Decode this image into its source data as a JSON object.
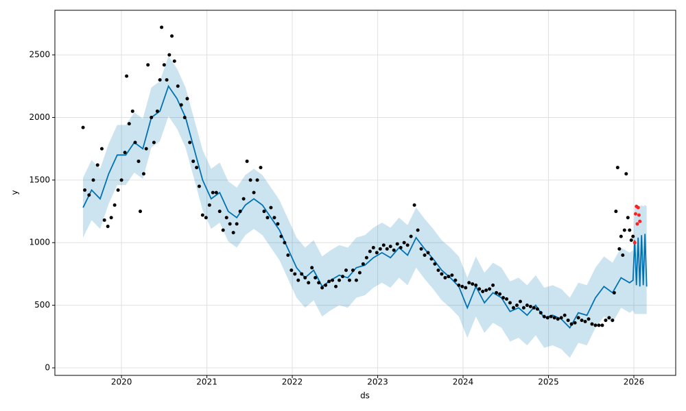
{
  "chart_data": {
    "type": "forecast",
    "xlabel": "ds",
    "ylabel": "y",
    "xlim": [
      2019.22,
      2026.49
    ],
    "ylim": [
      -60,
      2856
    ],
    "xticks": [
      2020,
      2021,
      2022,
      2023,
      2024,
      2025,
      2026
    ],
    "yticks": [
      0,
      500,
      1000,
      1500,
      2000,
      2500
    ],
    "grid": true,
    "observed": {
      "color": "#000000",
      "x": [
        2019.55,
        2019.57,
        2019.62,
        2019.67,
        2019.72,
        2019.77,
        2019.8,
        2019.84,
        2019.88,
        2019.92,
        2019.96,
        2020.0,
        2020.04,
        2020.06,
        2020.09,
        2020.13,
        2020.16,
        2020.2,
        2020.22,
        2020.26,
        2020.29,
        2020.31,
        2020.35,
        2020.38,
        2020.42,
        2020.45,
        2020.47,
        2020.5,
        2020.53,
        2020.56,
        2020.59,
        2020.62,
        2020.66,
        2020.7,
        2020.74,
        2020.77,
        2020.8,
        2020.84,
        2020.88,
        2020.91,
        2020.95,
        2020.99,
        2021.03,
        2021.07,
        2021.11,
        2021.15,
        2021.19,
        2021.23,
        2021.27,
        2021.31,
        2021.35,
        2021.39,
        2021.43,
        2021.47,
        2021.51,
        2021.55,
        2021.59,
        2021.63,
        2021.67,
        2021.71,
        2021.75,
        2021.79,
        2021.83,
        2021.87,
        2021.91,
        2021.95,
        2021.99,
        2022.03,
        2022.07,
        2022.11,
        2022.15,
        2022.19,
        2022.23,
        2022.27,
        2022.31,
        2022.35,
        2022.39,
        2022.43,
        2022.47,
        2022.51,
        2022.55,
        2022.59,
        2022.63,
        2022.67,
        2022.71,
        2022.75,
        2022.79,
        2022.83,
        2022.87,
        2022.91,
        2022.95,
        2022.99,
        2023.03,
        2023.07,
        2023.11,
        2023.15,
        2023.19,
        2023.23,
        2023.27,
        2023.31,
        2023.35,
        2023.39,
        2023.43,
        2023.47,
        2023.51,
        2023.55,
        2023.59,
        2023.63,
        2023.67,
        2023.71,
        2023.75,
        2023.79,
        2023.83,
        2023.87,
        2023.91,
        2023.95,
        2023.99,
        2024.03,
        2024.07,
        2024.11,
        2024.15,
        2024.19,
        2024.23,
        2024.27,
        2024.31,
        2024.35,
        2024.39,
        2024.43,
        2024.47,
        2024.51,
        2024.55,
        2024.59,
        2024.63,
        2024.67,
        2024.71,
        2024.75,
        2024.79,
        2024.83,
        2024.87,
        2024.91,
        2024.95,
        2024.99,
        2025.03,
        2025.07,
        2025.11,
        2025.15,
        2025.19,
        2025.23,
        2025.27,
        2025.31,
        2025.35,
        2025.39,
        2025.43,
        2025.47,
        2025.51,
        2025.55,
        2025.59,
        2025.63,
        2025.67,
        2025.71,
        2025.75,
        2025.77,
        2025.79,
        2025.81,
        2025.83,
        2025.85,
        2025.87,
        2025.89,
        2025.91,
        2025.93,
        2025.95,
        2025.97,
        2025.99
      ],
      "y": [
        1920,
        1420,
        1380,
        1500,
        1620,
        1750,
        1180,
        1130,
        1200,
        1300,
        1420,
        1500,
        1720,
        2330,
        1950,
        2050,
        1800,
        1650,
        1250,
        1550,
        1750,
        2420,
        2000,
        1800,
        2050,
        2300,
        2720,
        2420,
        2300,
        2500,
        2650,
        2450,
        2250,
        2100,
        2000,
        2150,
        1800,
        1650,
        1600,
        1450,
        1220,
        1200,
        1300,
        1400,
        1400,
        1250,
        1100,
        1200,
        1150,
        1080,
        1150,
        1250,
        1350,
        1650,
        1500,
        1400,
        1500,
        1600,
        1250,
        1200,
        1280,
        1200,
        1150,
        1050,
        1000,
        900,
        780,
        750,
        700,
        750,
        720,
        680,
        800,
        720,
        680,
        640,
        660,
        690,
        700,
        650,
        700,
        730,
        780,
        700,
        780,
        700,
        760,
        830,
        880,
        930,
        960,
        920,
        950,
        980,
        950,
        970,
        940,
        990,
        960,
        1000,
        980,
        1050,
        1300,
        1100,
        950,
        900,
        920,
        870,
        830,
        780,
        750,
        720,
        730,
        740,
        700,
        660,
        650,
        640,
        680,
        670,
        660,
        630,
        610,
        620,
        630,
        660,
        600,
        590,
        560,
        550,
        520,
        480,
        500,
        530,
        480,
        500,
        490,
        480,
        470,
        440,
        410,
        400,
        410,
        400,
        390,
        400,
        420,
        380,
        350,
        360,
        400,
        380,
        370,
        390,
        350,
        340,
        340,
        340,
        380,
        400,
        380,
        600,
        1250,
        1600,
        950,
        1050,
        900,
        1100,
        1550,
        1200,
        1100,
        1020,
        1050
      ]
    },
    "future": {
      "color": "#ff2020",
      "x": [
        2026.01,
        2026.02,
        2026.03,
        2026.04,
        2026.05,
        2026.06,
        2026.07
      ],
      "y": [
        1000,
        1230,
        1290,
        1150,
        1280,
        1220,
        1170
      ]
    },
    "forecast": {
      "color": "#0072b2",
      "x": [
        2019.55,
        2019.65,
        2019.75,
        2019.85,
        2019.95,
        2020.05,
        2020.15,
        2020.25,
        2020.35,
        2020.45,
        2020.55,
        2020.65,
        2020.75,
        2020.85,
        2020.95,
        2021.05,
        2021.15,
        2021.25,
        2021.35,
        2021.45,
        2021.55,
        2021.65,
        2021.75,
        2021.85,
        2021.95,
        2022.05,
        2022.15,
        2022.25,
        2022.35,
        2022.45,
        2022.55,
        2022.65,
        2022.75,
        2022.85,
        2022.95,
        2023.05,
        2023.15,
        2023.25,
        2023.35,
        2023.45,
        2023.55,
        2023.65,
        2023.75,
        2023.85,
        2023.95,
        2024.05,
        2024.15,
        2024.25,
        2024.35,
        2024.45,
        2024.55,
        2024.65,
        2024.75,
        2024.85,
        2024.95,
        2025.05,
        2025.15,
        2025.25,
        2025.35,
        2025.45,
        2025.55,
        2025.65,
        2025.75,
        2025.85,
        2025.95,
        2025.99,
        2026.01,
        2026.03,
        2026.05,
        2026.07,
        2026.09,
        2026.11,
        2026.13,
        2026.15
      ],
      "yhat": [
        1280,
        1420,
        1350,
        1550,
        1700,
        1700,
        1800,
        1750,
        2000,
        2050,
        2250,
        2150,
        2000,
        1750,
        1500,
        1350,
        1400,
        1250,
        1200,
        1300,
        1350,
        1300,
        1200,
        1100,
        950,
        800,
        720,
        780,
        650,
        700,
        740,
        720,
        800,
        820,
        880,
        920,
        880,
        960,
        900,
        1040,
        950,
        870,
        780,
        720,
        650,
        480,
        650,
        520,
        600,
        560,
        450,
        480,
        420,
        500,
        400,
        420,
        390,
        320,
        440,
        420,
        560,
        650,
        600,
        720,
        680,
        700,
        1020,
        660,
        1040,
        650,
        1060,
        660,
        1070,
        650
      ],
      "lower": [
        1040,
        1180,
        1110,
        1310,
        1460,
        1460,
        1560,
        1510,
        1760,
        1810,
        2010,
        1910,
        1760,
        1510,
        1260,
        1110,
        1160,
        1010,
        960,
        1060,
        1110,
        1060,
        960,
        860,
        710,
        560,
        480,
        540,
        410,
        460,
        500,
        480,
        560,
        580,
        640,
        680,
        640,
        720,
        660,
        800,
        710,
        630,
        540,
        480,
        410,
        240,
        410,
        280,
        360,
        320,
        210,
        240,
        180,
        260,
        160,
        180,
        150,
        80,
        200,
        180,
        320,
        410,
        360,
        480,
        440,
        460,
        430,
        430,
        430,
        430,
        430,
        430,
        430,
        430
      ],
      "upper": [
        1520,
        1660,
        1590,
        1790,
        1940,
        1940,
        2040,
        1990,
        2240,
        2290,
        2490,
        2390,
        2240,
        1990,
        1740,
        1590,
        1640,
        1490,
        1440,
        1540,
        1590,
        1540,
        1440,
        1340,
        1190,
        1040,
        960,
        1020,
        890,
        940,
        980,
        960,
        1040,
        1060,
        1120,
        1160,
        1120,
        1200,
        1140,
        1280,
        1190,
        1110,
        1020,
        960,
        890,
        720,
        890,
        760,
        840,
        800,
        690,
        720,
        660,
        740,
        640,
        660,
        630,
        560,
        680,
        660,
        800,
        890,
        840,
        960,
        920,
        940,
        1290,
        1290,
        1300,
        1290,
        1300,
        1290,
        1300,
        1290
      ]
    }
  }
}
